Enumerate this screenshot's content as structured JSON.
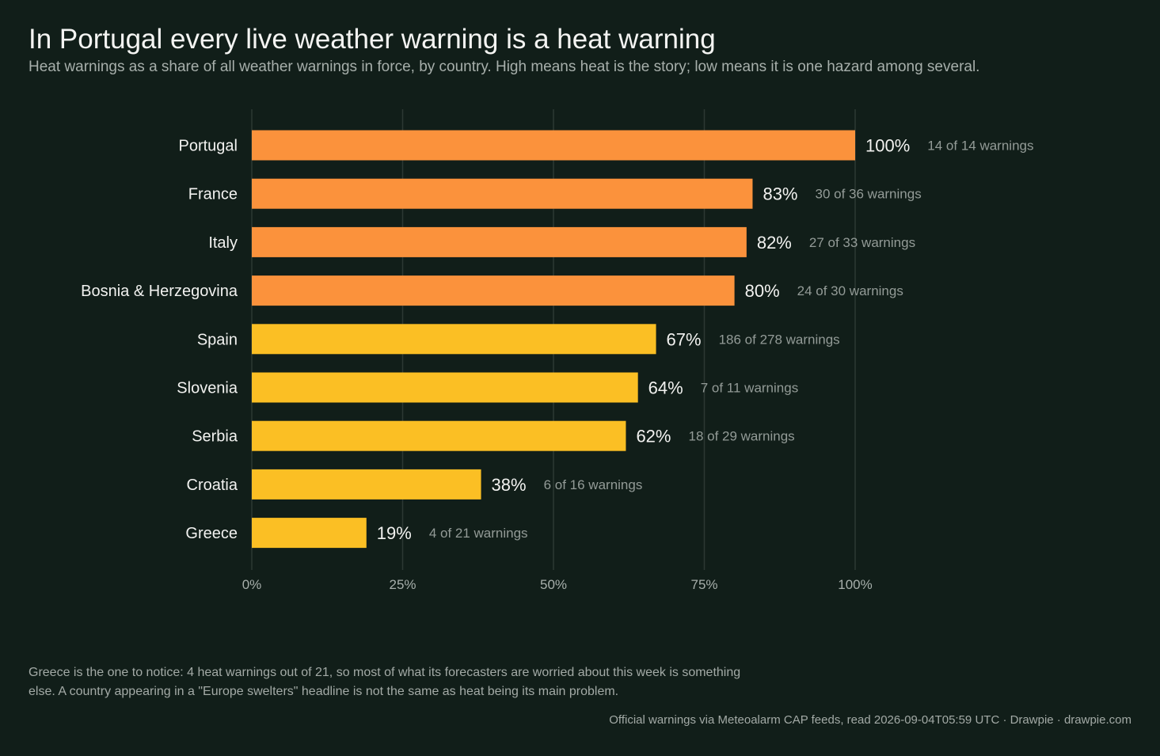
{
  "title": "In Portugal every live weather warning is a heat warning",
  "subtitle": "Heat warnings as a share of all weather warnings in force, by country. High means heat is the story; low means it is one hazard among several.",
  "note": "Greece is the one to notice: 4 heat warnings out of 21, so most of what its forecasters are worried about this week is something else. A country appearing in a \"Europe swelters\" headline is not the same as heat being its main problem.",
  "source": "Official warnings via Meteoalarm CAP feeds, read 2026-09-04T05:59 UTC  ·  Drawpie · drawpie.com",
  "colors": {
    "background": "#111e19",
    "high_share": "#fb923c",
    "lower_share": "#fbbf24",
    "grid": "#2c3833",
    "label": "#f2f2f0",
    "muted": "#939b97"
  },
  "chart_data": {
    "type": "bar",
    "orientation": "horizontal",
    "categories": [
      "Portugal",
      "France",
      "Italy",
      "Bosnia & Herzegovina",
      "Spain",
      "Slovenia",
      "Serbia",
      "Croatia",
      "Greece"
    ],
    "values": [
      100,
      83,
      82,
      80,
      67,
      64,
      62,
      38,
      19
    ],
    "value_labels": [
      "100%",
      "83%",
      "82%",
      "80%",
      "67%",
      "64%",
      "62%",
      "38%",
      "19%"
    ],
    "counts": [
      "14 of 14 warnings",
      "30 of 36 warnings",
      "27 of 33 warnings",
      "24 of 30 warnings",
      "186 of 278 warnings",
      "7 of 11 warnings",
      "18 of 29 warnings",
      "6 of 16 warnings",
      "4 of 21 warnings"
    ],
    "highlight": [
      true,
      true,
      true,
      true,
      false,
      false,
      false,
      false,
      false
    ],
    "xlim": [
      0,
      100
    ],
    "xticks": [
      0,
      25,
      50,
      75,
      100
    ],
    "xtick_labels": [
      "0%",
      "25%",
      "50%",
      "75%",
      "100%"
    ],
    "xlabel": "",
    "ylabel": "",
    "grid": "vertical",
    "legend": "none"
  }
}
